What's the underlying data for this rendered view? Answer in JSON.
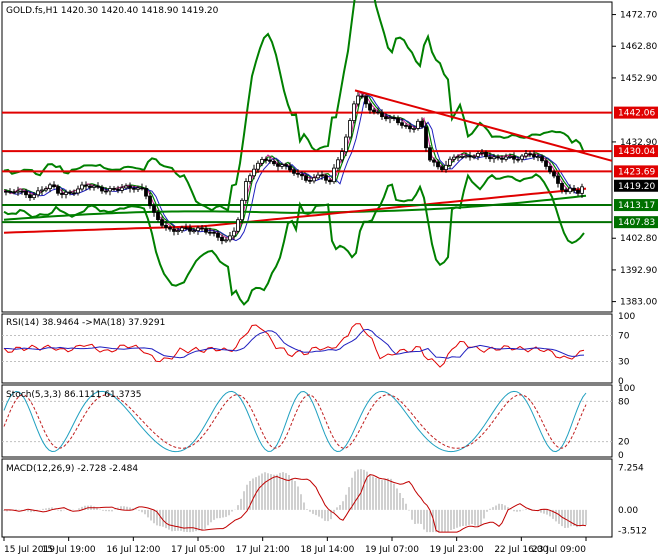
{
  "main_panel": {
    "header": "GOLD.fs,H1  1420.30 1420.40 1418.90 1419.20",
    "price_ticks": [
      "1472.70",
      "1462.80",
      "1452.90",
      "1442.06",
      "1432.90",
      "1430.04",
      "1423.69",
      "1419.20",
      "1413.17",
      "1407.83",
      "1402.80",
      "1392.90",
      "1383.00"
    ],
    "tick_values": [
      1472.7,
      1462.8,
      1452.9,
      1432.9,
      1402.8,
      1392.9,
      1383.0
    ],
    "price_range": [
      1381.0,
      1476.0
    ],
    "level_labels": [
      {
        "text": "1442.06",
        "value": 1442.06,
        "color": "#e00000"
      },
      {
        "text": "1430.04",
        "value": 1430.04,
        "color": "#e00000"
      },
      {
        "text": "1423.69",
        "value": 1423.69,
        "color": "#e00000"
      },
      {
        "text": "1413.17",
        "value": 1413.17,
        "color": "#007000"
      },
      {
        "text": "1407.83",
        "value": 1407.83,
        "color": "#007000"
      }
    ],
    "current_price": {
      "text": "1419.20",
      "value": 1419.2
    }
  },
  "rsi_panel": {
    "header": "RSI(14) 38.9464  ->MA(18) 37.9291",
    "ticks": [
      "100",
      "70",
      "30",
      "0"
    ],
    "tick_values": [
      100,
      70,
      30,
      0
    ]
  },
  "stoch_panel": {
    "header": "Stoch(5,3,3) 86.1111 61.3735",
    "ticks": [
      "100",
      "80",
      "20",
      "0"
    ],
    "tick_values": [
      100,
      80,
      20,
      0
    ]
  },
  "macd_panel": {
    "header": "MACD(12,26,9) -2.728 -2.484",
    "ticks": [
      "7.254",
      "0.00",
      "-3.512"
    ],
    "tick_values": [
      7.254,
      0.0,
      -3.512
    ],
    "range": [
      -4.3,
      8.2
    ]
  },
  "time_axis": [
    "15 Jul 2019",
    "15 Jul 19:00",
    "16 Jul 12:00",
    "17 Jul 05:00",
    "17 Jul 21:00",
    "18 Jul 14:00",
    "19 Jul 07:00",
    "19 Jul 23:00",
    "22 Jul 16:00",
    "23 Jul 09:00"
  ],
  "colors": {
    "support": "#007000",
    "resistance": "#e00000",
    "bollinger": "#008000",
    "rsi_line": "#2020c0",
    "rsi_ma": "#e00000",
    "stoch_main": "#20a0c0",
    "stoch_signal": "#c02020",
    "macd_hist": "#a0a0a0",
    "macd_signal": "#c00000"
  },
  "chart_data": {
    "type": "candlestick",
    "symbol": "GOLD.fs",
    "timeframe": "H1",
    "ohlc_last": {
      "open": 1420.3,
      "high": 1420.4,
      "low": 1418.9,
      "close": 1419.2
    },
    "close_path": [
      [
        0,
        1417.5
      ],
      [
        8,
        1416.5
      ],
      [
        16,
        1418
      ],
      [
        24,
        1417
      ],
      [
        32,
        1416
      ],
      [
        42,
        1418
      ],
      [
        52,
        1419
      ],
      [
        60,
        1416.5
      ],
      [
        68,
        1417
      ],
      [
        76,
        1418
      ],
      [
        84,
        1419.5
      ],
      [
        94,
        1418.5
      ],
      [
        104,
        1417.5
      ],
      [
        114,
        1418.2
      ],
      [
        124,
        1419
      ],
      [
        134,
        1418.5
      ],
      [
        144,
        1417.5
      ],
      [
        150,
        1413
      ],
      [
        156,
        1409
      ],
      [
        164,
        1407
      ],
      [
        172,
        1405
      ],
      [
        180,
        1406
      ],
      [
        190,
        1405
      ],
      [
        200,
        1405.5
      ],
      [
        210,
        1405
      ],
      [
        220,
        1403
      ],
      [
        228,
        1402
      ],
      [
        236,
        1406
      ],
      [
        242,
        1414
      ],
      [
        246,
        1420
      ],
      [
        252,
        1424
      ],
      [
        258,
        1426
      ],
      [
        264,
        1428.5
      ],
      [
        270,
        1427
      ],
      [
        276,
        1425
      ],
      [
        282,
        1426
      ],
      [
        290,
        1423.5
      ],
      [
        298,
        1423
      ],
      [
        306,
        1421
      ],
      [
        314,
        1422
      ],
      [
        322,
        1422.5
      ],
      [
        330,
        1420
      ],
      [
        336,
        1426
      ],
      [
        342,
        1430
      ],
      [
        348,
        1436
      ],
      [
        352,
        1443
      ],
      [
        356,
        1448
      ],
      [
        362,
        1447
      ],
      [
        368,
        1444
      ],
      [
        374,
        1442
      ],
      [
        380,
        1441
      ],
      [
        388,
        1440
      ],
      [
        396,
        1440
      ],
      [
        404,
        1438
      ],
      [
        412,
        1437
      ],
      [
        420,
        1440
      ],
      [
        424,
        1434
      ],
      [
        428,
        1428
      ],
      [
        434,
        1426
      ],
      [
        440,
        1424
      ],
      [
        446,
        1426
      ],
      [
        452,
        1428
      ],
      [
        458,
        1429
      ],
      [
        466,
        1428
      ],
      [
        474,
        1428.5
      ],
      [
        482,
        1429
      ],
      [
        490,
        1428
      ],
      [
        498,
        1428
      ],
      [
        506,
        1428.5
      ],
      [
        514,
        1427.5
      ],
      [
        522,
        1428
      ],
      [
        530,
        1429
      ],
      [
        538,
        1428
      ],
      [
        546,
        1426
      ],
      [
        554,
        1422
      ],
      [
        560,
        1419
      ],
      [
        566,
        1417
      ],
      [
        572,
        1418
      ],
      [
        578,
        1417
      ],
      [
        584,
        1419.2
      ]
    ],
    "trendlines": [
      {
        "from": [
          355,
          1449
        ],
        "to": [
          612,
          1427
        ],
        "color": "#e00000"
      }
    ]
  }
}
